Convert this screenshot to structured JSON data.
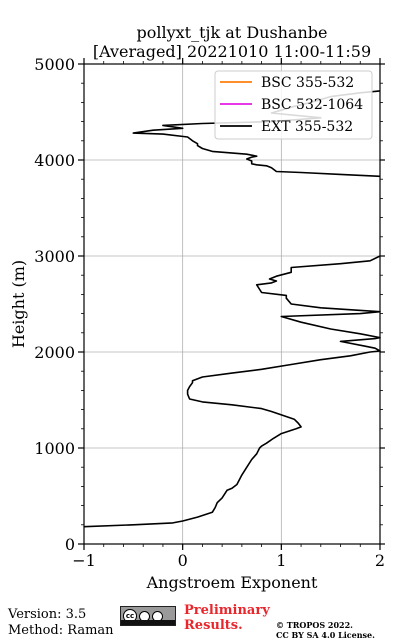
{
  "chart_data": {
    "type": "line",
    "title": "pollyxt_tjk at Dushanbe",
    "subtitle": "[Averaged] 20221010 11:00-11:59",
    "xlabel": "Angstroem Exponent",
    "ylabel": "Height (m)",
    "xlim": [
      -1,
      2
    ],
    "ylim": [
      0,
      5000
    ],
    "xticks": [
      "−1",
      "0",
      "1",
      "2"
    ],
    "yticks": [
      "0",
      "1000",
      "2000",
      "3000",
      "4000",
      "5000"
    ],
    "grid": true,
    "legend_position": "top-right",
    "series": [
      {
        "name": "BSC 355-532",
        "color": "#ff7f0e",
        "points": []
      },
      {
        "name": "BSC 532-1064",
        "color": "#e31ce3",
        "points": []
      },
      {
        "name": "EXT 355-532",
        "color": "#000000",
        "points": [
          [
            -1.0,
            180
          ],
          [
            -0.5,
            200
          ],
          [
            -0.1,
            220
          ],
          [
            0.0,
            240
          ],
          [
            0.15,
            280
          ],
          [
            0.3,
            330
          ],
          [
            0.33,
            380
          ],
          [
            0.35,
            430
          ],
          [
            0.4,
            480
          ],
          [
            0.45,
            560
          ],
          [
            0.5,
            580
          ],
          [
            0.55,
            620
          ],
          [
            0.6,
            720
          ],
          [
            0.65,
            800
          ],
          [
            0.7,
            880
          ],
          [
            0.75,
            940
          ],
          [
            0.78,
            1000
          ],
          [
            0.8,
            1020
          ],
          [
            0.85,
            1050
          ],
          [
            0.92,
            1100
          ],
          [
            1.0,
            1150
          ],
          [
            1.15,
            1200
          ],
          [
            1.2,
            1220
          ],
          [
            1.17,
            1260
          ],
          [
            1.13,
            1300
          ],
          [
            0.9,
            1380
          ],
          [
            0.8,
            1410
          ],
          [
            0.5,
            1450
          ],
          [
            0.2,
            1480
          ],
          [
            0.07,
            1510
          ],
          [
            0.05,
            1560
          ],
          [
            0.05,
            1600
          ],
          [
            0.07,
            1640
          ],
          [
            0.1,
            1680
          ],
          [
            0.1,
            1700
          ],
          [
            0.2,
            1740
          ],
          [
            0.5,
            1780
          ],
          [
            0.8,
            1820
          ],
          [
            1.1,
            1870
          ],
          [
            1.4,
            1920
          ],
          [
            1.7,
            1960
          ],
          [
            1.9,
            2000
          ],
          [
            2.0,
            2010
          ],
          [
            1.95,
            2040
          ],
          [
            1.85,
            2060
          ],
          [
            1.6,
            2110
          ],
          [
            1.95,
            2140
          ],
          [
            2.0,
            2150
          ],
          [
            1.8,
            2190
          ],
          [
            1.5,
            2240
          ],
          [
            1.2,
            2310
          ],
          [
            1.0,
            2370
          ],
          [
            1.8,
            2400
          ],
          [
            2.0,
            2420
          ],
          [
            1.4,
            2460
          ],
          [
            1.1,
            2500
          ],
          [
            1.05,
            2560
          ],
          [
            1.05,
            2590
          ],
          [
            0.8,
            2620
          ],
          [
            0.75,
            2700
          ],
          [
            0.9,
            2720
          ],
          [
            0.95,
            2740
          ],
          [
            0.88,
            2760
          ],
          [
            0.95,
            2790
          ],
          [
            1.1,
            2830
          ],
          [
            1.1,
            2880
          ],
          [
            1.6,
            2920
          ],
          [
            1.9,
            2950
          ],
          [
            2.0,
            3000
          ]
        ]
      },
      {
        "name": "EXT 355-532 (upper)",
        "color": "#000000",
        "points": [
          [
            2.0,
            3830
          ],
          [
            1.6,
            3850
          ],
          [
            1.2,
            3870
          ],
          [
            0.95,
            3880
          ],
          [
            0.9,
            3920
          ],
          [
            0.85,
            3940
          ],
          [
            0.75,
            3950
          ],
          [
            0.7,
            3960
          ],
          [
            0.7,
            3990
          ],
          [
            0.65,
            4010
          ],
          [
            0.7,
            4030
          ],
          [
            0.75,
            4040
          ],
          [
            0.65,
            4060
          ],
          [
            0.3,
            4090
          ],
          [
            0.2,
            4120
          ],
          [
            0.15,
            4150
          ],
          [
            0.15,
            4170
          ],
          [
            0.1,
            4200
          ],
          [
            0.05,
            4240
          ],
          [
            -0.2,
            4270
          ],
          [
            -0.5,
            4280
          ],
          [
            -0.3,
            4310
          ],
          [
            0.0,
            4330
          ],
          [
            -0.2,
            4360
          ],
          [
            0.2,
            4380
          ],
          [
            0.9,
            4400
          ],
          [
            1.4,
            4440
          ],
          [
            0.9,
            4490
          ],
          [
            1.1,
            4550
          ],
          [
            1.3,
            4600
          ],
          [
            1.5,
            4660
          ],
          [
            1.8,
            4700
          ],
          [
            2.0,
            4720
          ]
        ]
      }
    ]
  },
  "footer": {
    "version": "Version: 3.5",
    "method": "Method: Raman",
    "preliminary_line1": "Preliminary",
    "preliminary_line2": "Results.",
    "copyright_line1": "© TROPOS 2022.",
    "copyright_line2": "CC BY SA 4.0 License.",
    "cc_badge_text": "cc"
  }
}
